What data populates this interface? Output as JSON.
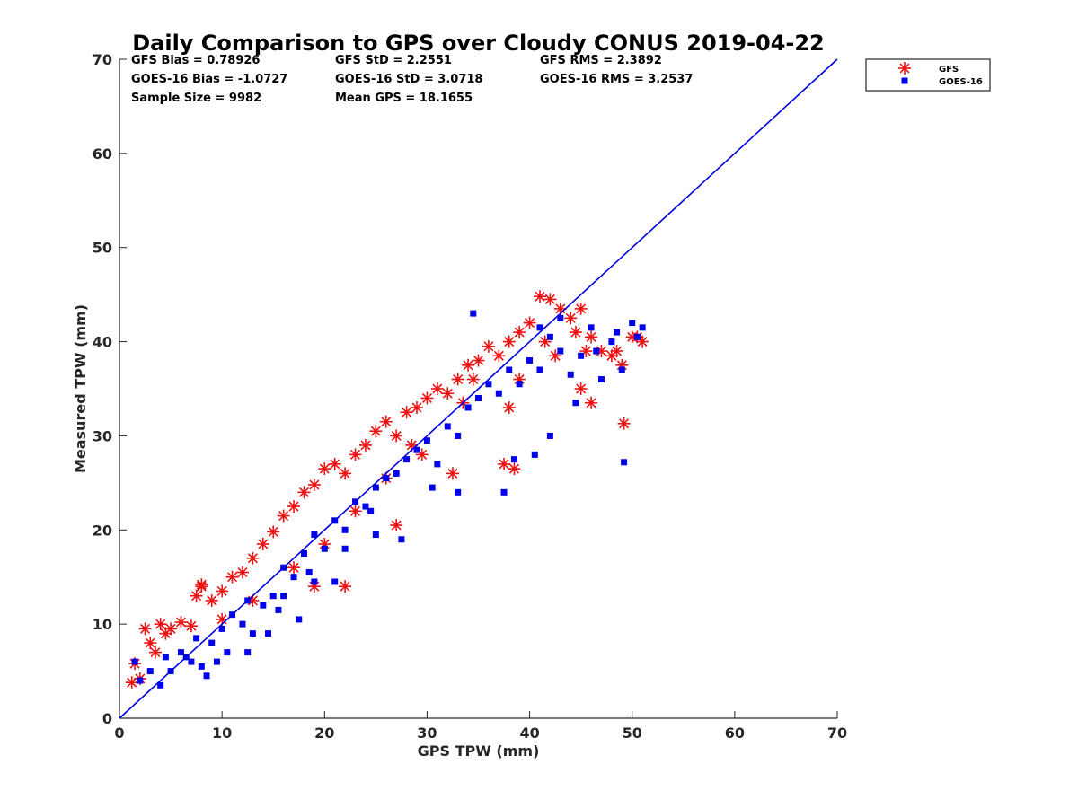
{
  "chart_data": {
    "type": "scatter",
    "title": "Daily Comparison to GPS over Cloudy CONUS 2019-04-22",
    "xlabel": "GPS TPW (mm)",
    "ylabel": "Measured TPW (mm)",
    "xlim": [
      0,
      70
    ],
    "ylim": [
      0,
      70
    ],
    "xticks": [
      "0",
      "10",
      "20",
      "30",
      "40",
      "50",
      "60",
      "70"
    ],
    "yticks": [
      "0",
      "10",
      "20",
      "30",
      "40",
      "50",
      "60",
      "70"
    ],
    "grid": false,
    "legend_position": "outside-top-right",
    "stats": [
      "GFS Bias = 0.78926",
      "GFS StD = 2.2551",
      "GFS RMS = 2.3892",
      "GOES-16 Bias = -1.0727",
      "GOES-16 StD = 3.0718",
      "GOES-16 RMS = 3.2537",
      "Sample Size = 9982",
      "Mean GPS = 18.1655"
    ],
    "reference_line": {
      "x": [
        0,
        70
      ],
      "y": [
        0,
        70
      ],
      "color": "#0000dd"
    },
    "series": [
      {
        "name": "GFS",
        "marker": "asterisk",
        "color": "#ee1111",
        "x": [
          1.2,
          1.5,
          2.0,
          2.5,
          3.0,
          3.5,
          4.0,
          4.5,
          5.0,
          6.0,
          7.0,
          7.5,
          8.0,
          9.0,
          10.0,
          11.0,
          12.0,
          13.0,
          14.0,
          15.0,
          16.0,
          17.0,
          18.0,
          19.0,
          20.0,
          21.0,
          22.0,
          23.0,
          24.0,
          25.0,
          26.0,
          27.0,
          28.0,
          29.0,
          30.0,
          31.0,
          32.0,
          33.0,
          34.0,
          35.0,
          36.0,
          37.0,
          38.0,
          39.0,
          40.0,
          41.0,
          42.0,
          43.0,
          44.0,
          45.0,
          46.0,
          47.0,
          48.0,
          49.0,
          50.0,
          51.0,
          28.5,
          29.5,
          32.5,
          33.5,
          34.5,
          37.5,
          38.5,
          41.5,
          42.5,
          44.5,
          45.5,
          48.5,
          49.2,
          50.5,
          19.0,
          22.0,
          27.0,
          38.0,
          39.0,
          45.0,
          46.0,
          8.0,
          10.0,
          13.0,
          17.0,
          20.0,
          23.0,
          26.0
        ],
        "y": [
          3.8,
          5.8,
          4.2,
          9.5,
          8.0,
          7.0,
          10.0,
          9.0,
          9.5,
          10.2,
          9.8,
          13.0,
          14.0,
          12.5,
          13.5,
          15.0,
          15.5,
          17.0,
          18.5,
          19.8,
          21.5,
          22.5,
          24.0,
          24.8,
          26.5,
          27.0,
          26.0,
          28.0,
          29.0,
          30.5,
          31.5,
          30.0,
          32.5,
          33.0,
          34.0,
          35.0,
          34.5,
          36.0,
          37.5,
          38.0,
          39.5,
          38.5,
          40.0,
          41.0,
          42.0,
          44.8,
          44.5,
          43.5,
          42.5,
          43.5,
          40.5,
          39.0,
          38.5,
          37.5,
          40.5,
          40.0,
          29.0,
          28.0,
          26.0,
          33.5,
          36.0,
          27.0,
          26.5,
          40.0,
          38.5,
          41.0,
          39.0,
          39.0,
          31.3,
          40.5,
          14.0,
          14.0,
          20.5,
          33.0,
          36.0,
          35.0,
          33.5,
          14.2,
          10.5,
          12.5,
          16.0,
          18.5,
          22.0,
          25.5
        ]
      },
      {
        "name": "GOES-16",
        "marker": "square",
        "color": "#0000ee",
        "x": [
          1.5,
          2.0,
          3.0,
          4.0,
          4.5,
          5.0,
          6.0,
          7.0,
          7.5,
          8.0,
          9.0,
          10.0,
          10.5,
          11.0,
          12.0,
          12.5,
          13.0,
          14.0,
          15.0,
          15.5,
          16.0,
          17.0,
          18.0,
          18.5,
          19.0,
          20.0,
          21.0,
          22.0,
          23.0,
          24.0,
          25.0,
          26.0,
          27.0,
          28.0,
          29.0,
          30.0,
          31.0,
          32.0,
          33.0,
          34.0,
          35.0,
          36.0,
          37.0,
          38.0,
          39.0,
          40.0,
          41.0,
          42.0,
          43.0,
          44.0,
          45.0,
          46.0,
          47.0,
          48.0,
          49.0,
          50.0,
          51.0,
          33.0,
          34.5,
          37.5,
          38.5,
          40.5,
          42.0,
          44.5,
          46.5,
          49.2,
          41.0,
          43.0,
          48.5,
          50.5,
          16.0,
          19.0,
          22.0,
          24.5,
          27.5,
          30.5,
          17.5,
          12.5,
          8.5,
          6.5,
          9.5,
          14.5,
          21.0,
          25.0
        ],
        "y": [
          6.0,
          4.0,
          5.0,
          3.5,
          6.5,
          5.0,
          7.0,
          6.0,
          8.5,
          5.5,
          8.0,
          9.5,
          7.0,
          11.0,
          10.0,
          12.5,
          9.0,
          12.0,
          13.0,
          11.5,
          16.0,
          15.0,
          17.5,
          15.5,
          19.5,
          18.0,
          21.0,
          20.0,
          23.0,
          22.5,
          24.5,
          25.5,
          26.0,
          27.5,
          28.5,
          29.5,
          27.0,
          31.0,
          30.0,
          33.0,
          34.0,
          35.5,
          34.5,
          37.0,
          35.5,
          38.0,
          37.0,
          40.5,
          39.0,
          36.5,
          38.5,
          41.5,
          36.0,
          40.0,
          37.0,
          42.0,
          41.5,
          24.0,
          43.0,
          24.0,
          27.5,
          28.0,
          30.0,
          33.5,
          39.0,
          27.2,
          41.5,
          42.5,
          41.0,
          40.5,
          13.0,
          14.5,
          18.0,
          22.0,
          19.0,
          24.5,
          10.5,
          7.0,
          4.5,
          6.5,
          6.0,
          9.0,
          14.5,
          19.5
        ]
      }
    ]
  }
}
